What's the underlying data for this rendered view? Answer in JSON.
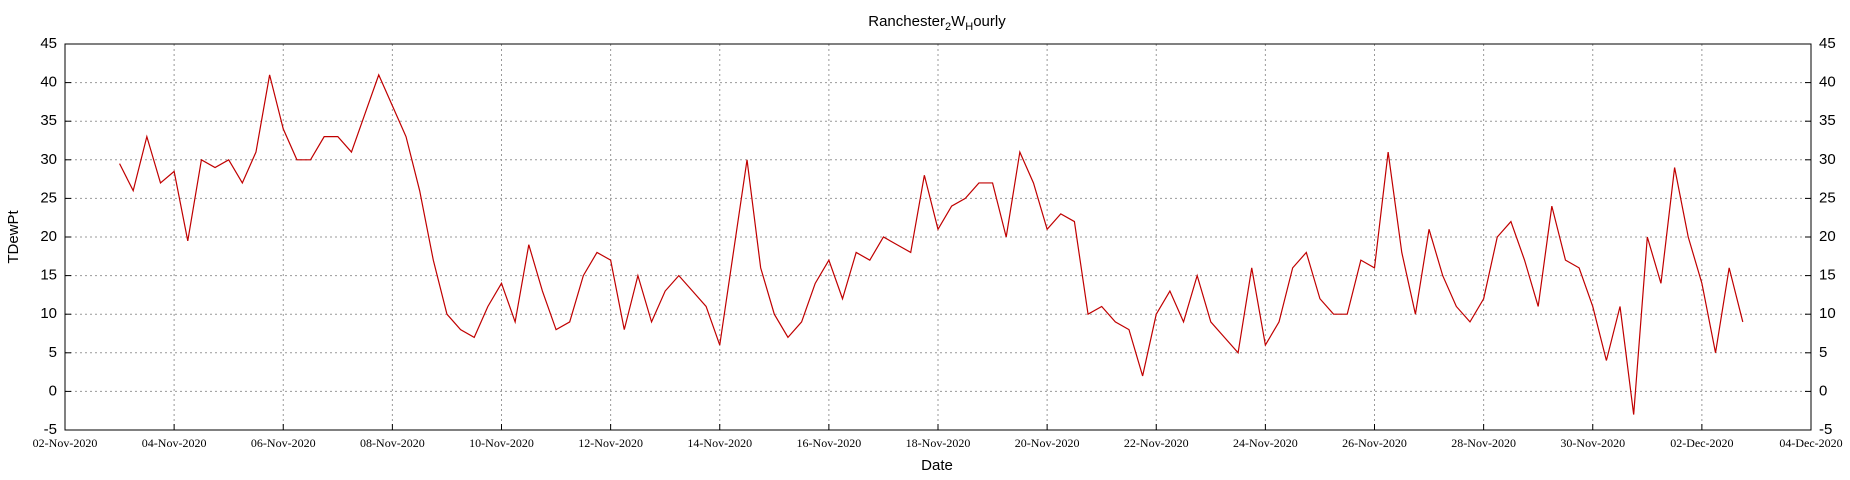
{
  "chart_data": {
    "type": "line",
    "title_parts": [
      "Ranchester",
      "2",
      "W",
      "H",
      "ourly"
    ],
    "xlabel": "Date",
    "ylabel": "TDewPt",
    "xlim": [
      "2020-11-02T00:00",
      "2020-12-04T00:00"
    ],
    "xticks": [
      {
        "value": "2020-11-02T00:00",
        "label": "02-Nov-2020"
      },
      {
        "value": "2020-11-04T00:00",
        "label": "04-Nov-2020"
      },
      {
        "value": "2020-11-06T00:00",
        "label": "06-Nov-2020"
      },
      {
        "value": "2020-11-08T00:00",
        "label": "08-Nov-2020"
      },
      {
        "value": "2020-11-10T00:00",
        "label": "10-Nov-2020"
      },
      {
        "value": "2020-11-12T00:00",
        "label": "12-Nov-2020"
      },
      {
        "value": "2020-11-14T00:00",
        "label": "14-Nov-2020"
      },
      {
        "value": "2020-11-16T00:00",
        "label": "16-Nov-2020"
      },
      {
        "value": "2020-11-18T00:00",
        "label": "18-Nov-2020"
      },
      {
        "value": "2020-11-20T00:00",
        "label": "20-Nov-2020"
      },
      {
        "value": "2020-11-22T00:00",
        "label": "22-Nov-2020"
      },
      {
        "value": "2020-11-24T00:00",
        "label": "24-Nov-2020"
      },
      {
        "value": "2020-11-26T00:00",
        "label": "26-Nov-2020"
      },
      {
        "value": "2020-11-28T00:00",
        "label": "28-Nov-2020"
      },
      {
        "value": "2020-11-30T00:00",
        "label": "30-Nov-2020"
      },
      {
        "value": "2020-12-02T00:00",
        "label": "02-Dec-2020"
      },
      {
        "value": "2020-12-04T00:00",
        "label": "04-Dec-2020"
      }
    ],
    "ylim": [
      -5,
      45
    ],
    "yticks": [
      -5,
      0,
      5,
      10,
      15,
      20,
      25,
      30,
      35,
      40,
      45
    ],
    "grid": true,
    "right_axis_ticks": true,
    "x": [
      "2020-11-03T00:00",
      "2020-11-03T06:00",
      "2020-11-03T12:00",
      "2020-11-03T18:00",
      "2020-11-04T00:00",
      "2020-11-04T06:00",
      "2020-11-04T12:00",
      "2020-11-04T18:00",
      "2020-11-05T00:00",
      "2020-11-05T06:00",
      "2020-11-05T12:00",
      "2020-11-05T18:00",
      "2020-11-06T00:00",
      "2020-11-06T06:00",
      "2020-11-06T12:00",
      "2020-11-06T18:00",
      "2020-11-07T00:00",
      "2020-11-07T06:00",
      "2020-11-07T12:00",
      "2020-11-07T18:00",
      "2020-11-08T00:00",
      "2020-11-08T06:00",
      "2020-11-08T12:00",
      "2020-11-08T18:00",
      "2020-11-09T00:00",
      "2020-11-09T06:00",
      "2020-11-09T12:00",
      "2020-11-09T18:00",
      "2020-11-10T00:00",
      "2020-11-10T06:00",
      "2020-11-10T12:00",
      "2020-11-10T18:00",
      "2020-11-11T00:00",
      "2020-11-11T06:00",
      "2020-11-11T12:00",
      "2020-11-11T18:00",
      "2020-11-12T00:00",
      "2020-11-12T06:00",
      "2020-11-12T12:00",
      "2020-11-12T18:00",
      "2020-11-13T00:00",
      "2020-11-13T06:00",
      "2020-11-13T12:00",
      "2020-11-13T18:00",
      "2020-11-14T00:00",
      "2020-11-14T06:00",
      "2020-11-14T12:00",
      "2020-11-14T18:00",
      "2020-11-15T00:00",
      "2020-11-15T06:00",
      "2020-11-15T12:00",
      "2020-11-15T18:00",
      "2020-11-16T00:00",
      "2020-11-16T06:00",
      "2020-11-16T12:00",
      "2020-11-16T18:00",
      "2020-11-17T00:00",
      "2020-11-17T06:00",
      "2020-11-17T12:00",
      "2020-11-17T18:00",
      "2020-11-18T00:00",
      "2020-11-18T06:00",
      "2020-11-18T12:00",
      "2020-11-18T18:00",
      "2020-11-19T00:00",
      "2020-11-19T06:00",
      "2020-11-19T12:00",
      "2020-11-19T18:00",
      "2020-11-20T00:00",
      "2020-11-20T06:00",
      "2020-11-20T12:00",
      "2020-11-20T18:00",
      "2020-11-21T00:00",
      "2020-11-21T06:00",
      "2020-11-21T12:00",
      "2020-11-21T18:00",
      "2020-11-22T00:00",
      "2020-11-22T06:00",
      "2020-11-22T12:00",
      "2020-11-22T18:00",
      "2020-11-23T00:00",
      "2020-11-23T06:00",
      "2020-11-23T12:00",
      "2020-11-23T18:00",
      "2020-11-24T00:00",
      "2020-11-24T06:00",
      "2020-11-24T12:00",
      "2020-11-24T18:00",
      "2020-11-25T00:00",
      "2020-11-25T06:00",
      "2020-11-25T12:00",
      "2020-11-25T18:00",
      "2020-11-26T00:00",
      "2020-11-26T06:00",
      "2020-11-26T12:00",
      "2020-11-26T18:00",
      "2020-11-27T00:00",
      "2020-11-27T06:00",
      "2020-11-27T12:00",
      "2020-11-27T18:00",
      "2020-11-28T00:00",
      "2020-11-28T06:00",
      "2020-11-28T12:00",
      "2020-11-28T18:00",
      "2020-11-29T00:00",
      "2020-11-29T06:00",
      "2020-11-29T12:00",
      "2020-11-29T18:00",
      "2020-11-30T00:00",
      "2020-11-30T06:00",
      "2020-11-30T12:00",
      "2020-11-30T18:00",
      "2020-12-01T00:00",
      "2020-12-01T06:00",
      "2020-12-01T12:00",
      "2020-12-01T18:00",
      "2020-12-02T00:00",
      "2020-12-02T06:00",
      "2020-12-02T12:00",
      "2020-12-02T18:00"
    ],
    "series": [
      {
        "name": "TDewPt",
        "color": "#c00000",
        "values": [
          29.5,
          26,
          33,
          27,
          28.5,
          19.5,
          30,
          29,
          30,
          27,
          31,
          41,
          34,
          30,
          30,
          33,
          33,
          31,
          36,
          41,
          37,
          33,
          26,
          17,
          10,
          8,
          7,
          11,
          14,
          9,
          19,
          13,
          8,
          9,
          15,
          18,
          17,
          8,
          15,
          9,
          13,
          15,
          13,
          11,
          6,
          18,
          30,
          16,
          10,
          7,
          9,
          14,
          17,
          12,
          18,
          17,
          20,
          19,
          18,
          28,
          21,
          24,
          25,
          27,
          27,
          20,
          31,
          27,
          21,
          23,
          22,
          10,
          11,
          9,
          8,
          2,
          10,
          13,
          9,
          15,
          9,
          7,
          5,
          16,
          6,
          9,
          16,
          18,
          12,
          10,
          10,
          17,
          16,
          31,
          18,
          10,
          21,
          15,
          11,
          9,
          12,
          20,
          22,
          17,
          11,
          24,
          17,
          16,
          11,
          4,
          11,
          -3,
          20,
          14,
          29,
          20,
          14,
          5,
          16,
          9
        ]
      }
    ]
  }
}
